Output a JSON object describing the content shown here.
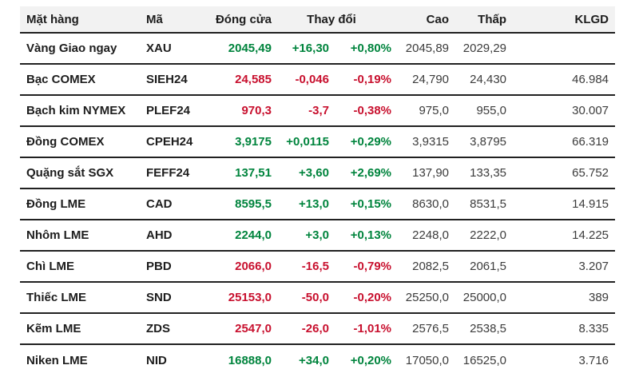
{
  "colors": {
    "up": "#00843D",
    "down": "#C8102E",
    "header_bg": "#f2f2f2",
    "border": "#212121"
  },
  "table": {
    "headers": {
      "item": "Mặt hàng",
      "code": "Mã",
      "close": "Đóng cửa",
      "change": "Thay đổi",
      "high": "Cao",
      "low": "Thấp",
      "volume": "KLGD"
    },
    "rows": [
      {
        "item": "Vàng Giao ngay",
        "code": "XAU",
        "close": "2045,49",
        "change": "+16,30",
        "change_pct": "+0,80%",
        "high": "2045,89",
        "low": "2029,29",
        "volume": "",
        "direction": "up"
      },
      {
        "item": "Bạc COMEX",
        "code": "SIEH24",
        "close": "24,585",
        "change": "-0,046",
        "change_pct": "-0,19%",
        "high": "24,790",
        "low": "24,430",
        "volume": "46.984",
        "direction": "down"
      },
      {
        "item": "Bạch kim NYMEX",
        "code": "PLEF24",
        "close": "970,3",
        "change": "-3,7",
        "change_pct": "-0,38%",
        "high": "975,0",
        "low": "955,0",
        "volume": "30.007",
        "direction": "down"
      },
      {
        "item": "Đồng COMEX",
        "code": "CPEH24",
        "close": "3,9175",
        "change": "+0,0115",
        "change_pct": "+0,29%",
        "high": "3,9315",
        "low": "3,8795",
        "volume": "66.319",
        "direction": "up"
      },
      {
        "item": "Quặng sắt SGX",
        "code": "FEFF24",
        "close": "137,51",
        "change": "+3,60",
        "change_pct": "+2,69%",
        "high": "137,90",
        "low": "133,35",
        "volume": "65.752",
        "direction": "up"
      },
      {
        "item": "Đồng LME",
        "code": "CAD",
        "close": "8595,5",
        "change": "+13,0",
        "change_pct": "+0,15%",
        "high": "8630,0",
        "low": "8531,5",
        "volume": "14.915",
        "direction": "up"
      },
      {
        "item": "Nhôm LME",
        "code": "AHD",
        "close": "2244,0",
        "change": "+3,0",
        "change_pct": "+0,13%",
        "high": "2248,0",
        "low": "2222,0",
        "volume": "14.225",
        "direction": "up"
      },
      {
        "item": "Chì LME",
        "code": "PBD",
        "close": "2066,0",
        "change": "-16,5",
        "change_pct": "-0,79%",
        "high": "2082,5",
        "low": "2061,5",
        "volume": "3.207",
        "direction": "down"
      },
      {
        "item": "Thiếc LME",
        "code": "SND",
        "close": "25153,0",
        "change": "-50,0",
        "change_pct": "-0,20%",
        "high": "25250,0",
        "low": "25000,0",
        "volume": "389",
        "direction": "down"
      },
      {
        "item": "Kẽm LME",
        "code": "ZDS",
        "close": "2547,0",
        "change": "-26,0",
        "change_pct": "-1,01%",
        "high": "2576,5",
        "low": "2538,5",
        "volume": "8.335",
        "direction": "down"
      },
      {
        "item": "Niken LME",
        "code": "NID",
        "close": "16888,0",
        "change": "+34,0",
        "change_pct": "+0,20%",
        "high": "17050,0",
        "low": "16525,0",
        "volume": "3.716",
        "direction": "up"
      }
    ]
  }
}
